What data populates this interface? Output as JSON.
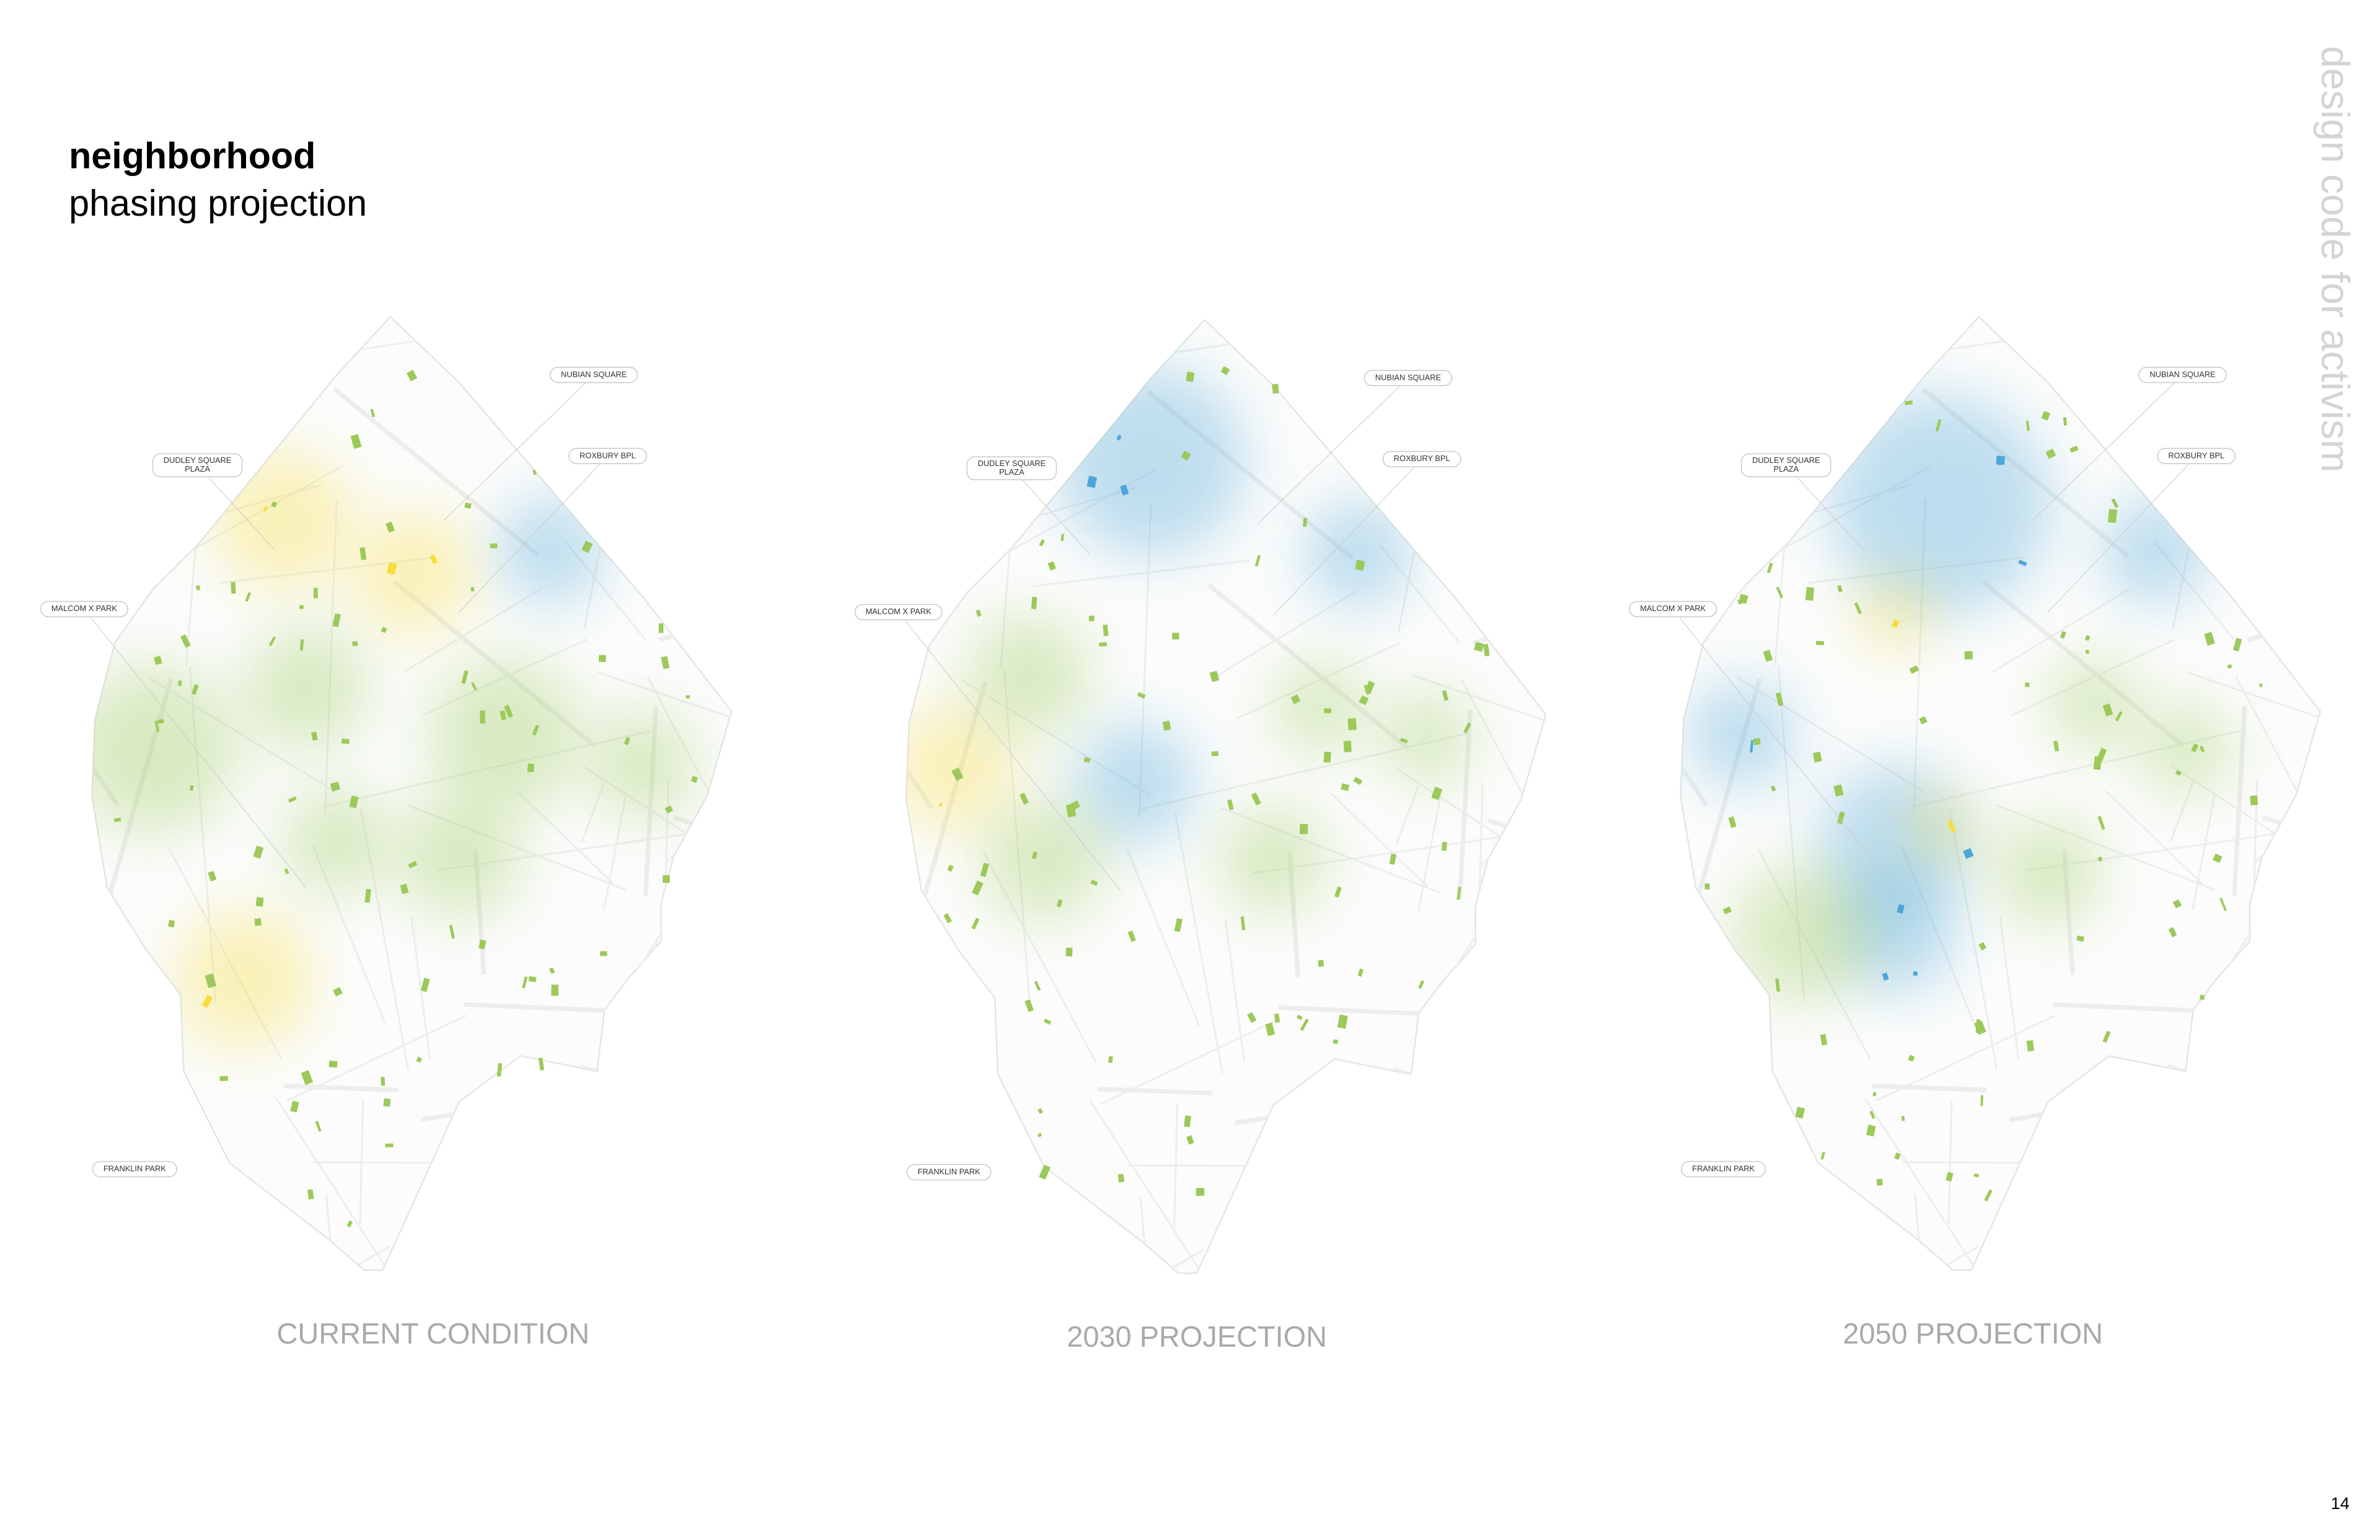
{
  "header": {
    "title": "neighborhood",
    "subtitle": "phasing projection",
    "side_text": "design code for activism",
    "page_number": "14"
  },
  "maps": [
    {
      "caption": "CURRENT CONDITION",
      "labels": [
        [
          "NUBIAN SQUARE"
        ],
        [
          "ROXBURY BPL"
        ],
        [
          "DUDLEY SQUARE",
          "PLAZA"
        ],
        [
          "MALCOM X PARK"
        ],
        [
          "FRANKLIN PARK"
        ]
      ]
    },
    {
      "caption": "2030 PROJECTION",
      "labels": [
        [
          "NUBIAN SQUARE"
        ],
        [
          "ROXBURY BPL"
        ],
        [
          "DUDLEY SQUARE",
          "PLAZA"
        ],
        [
          "MALCOM X PARK"
        ],
        [
          "FRANKLIN PARK"
        ]
      ]
    },
    {
      "caption": "2050 PROJECTION",
      "labels": [
        [
          "NUBIAN SQUARE"
        ],
        [
          "ROXBURY BPL"
        ],
        [
          "DUDLEY SQUARE",
          "PLAZA"
        ],
        [
          "MALCOM X PARK"
        ],
        [
          "FRANKLIN PARK"
        ]
      ]
    }
  ]
}
